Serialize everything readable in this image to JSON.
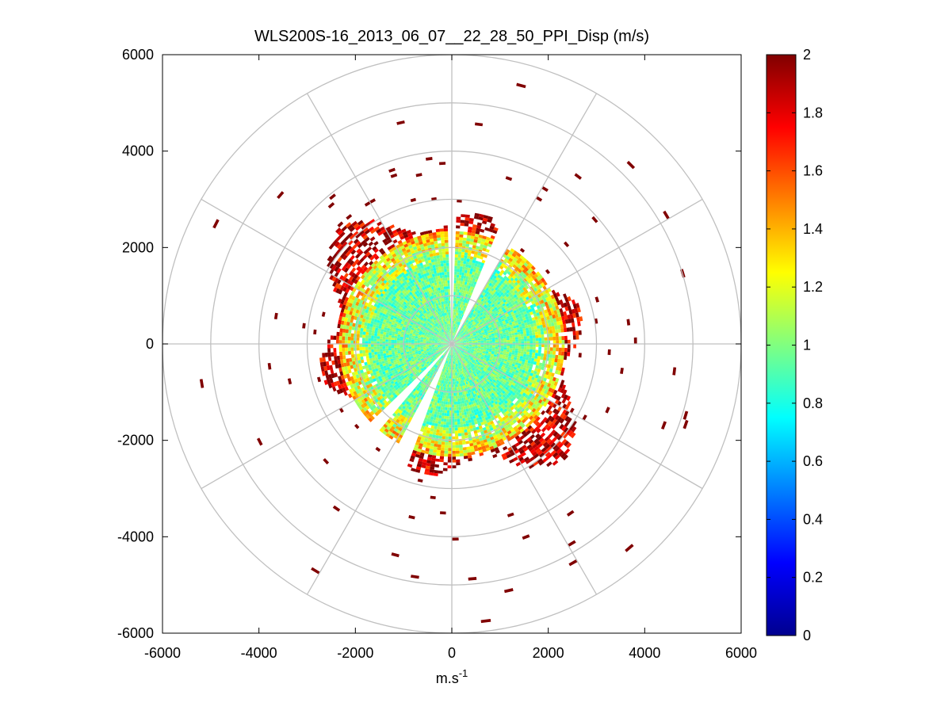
{
  "chart_data": {
    "type": "heatmap",
    "subtype": "polar-ppi-scan",
    "title": "WLS200S-16_2013_06_07__22_28_50_PPI_Disp (m/s)",
    "xlabel": "m.s",
    "xlabel_superscript": "-1",
    "ylabel": "",
    "xlim": [
      -6000,
      6000
    ],
    "ylim": [
      -6000,
      6000
    ],
    "xticks": [
      -6000,
      -4000,
      -2000,
      0,
      2000,
      4000,
      6000
    ],
    "yticks": [
      -6000,
      -4000,
      -2000,
      0,
      2000,
      4000,
      6000
    ],
    "xtick_labels": [
      "-6000",
      "-4000",
      "-2000",
      "0",
      "2000",
      "4000",
      "6000"
    ],
    "ytick_labels": [
      "6000",
      "4000",
      "2000",
      "0",
      "-2000",
      "-4000",
      "-6000"
    ],
    "polar_grid": {
      "rings": [
        1000,
        2000,
        3000,
        4000,
        5000,
        6000
      ],
      "spokes_deg": [
        0,
        30,
        60,
        90,
        120,
        150,
        180,
        210,
        240,
        270,
        300,
        330
      ]
    },
    "colorbar": {
      "min": 0,
      "max": 2,
      "ticks": [
        0,
        0.2,
        0.4,
        0.6,
        0.8,
        1,
        1.2,
        1.4,
        1.6,
        1.8,
        2
      ],
      "tick_labels": [
        "0",
        "0.2",
        "0.4",
        "0.6",
        "0.8",
        "1",
        "1.2",
        "1.4",
        "1.6",
        "1.8",
        "2"
      ],
      "colormap": "jet"
    },
    "field_model": {
      "core_radius": 1700,
      "core_value": 0.95,
      "ring_radius": 2300,
      "ring_value": 1.3,
      "max_range": 3000,
      "sparse_range": 5800,
      "saturated_value": 2,
      "missing_sectors_deg": [
        [
          -1,
          1
        ],
        [
          22,
          30
        ],
        [
          200,
          208
        ],
        [
          220,
          226
        ]
      ]
    }
  }
}
